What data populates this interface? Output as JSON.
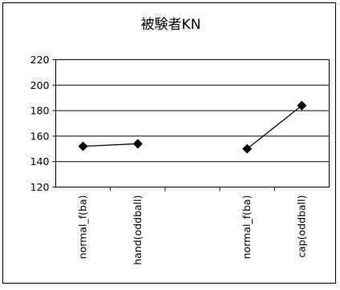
{
  "chart_data": {
    "type": "line",
    "title": "被験者KN",
    "categories": [
      "normal_f(ba)",
      "hand(oddball)",
      "",
      "normal_f(ba)",
      "cap(oddball)"
    ],
    "tick_labels": [
      "normal_f(ba)",
      "hand(oddball)",
      "normal_f(ba)",
      "cap(oddball)"
    ],
    "series": [
      {
        "segments": [
          {
            "points": [
              {
                "category": 0,
                "value": 152
              },
              {
                "category": 1,
                "value": 154
              }
            ]
          },
          {
            "points": [
              {
                "category": 3,
                "value": 150
              },
              {
                "category": 4,
                "value": 184
              }
            ]
          }
        ]
      }
    ],
    "yticks": [
      120,
      140,
      160,
      180,
      200,
      220
    ],
    "ylim": [
      120,
      220
    ],
    "xlabel": "",
    "ylabel": "",
    "grid": "horizontal",
    "legend": "none",
    "marker": "diamond",
    "colors": {
      "line": "#000000",
      "grid": "#000000",
      "background": "#ffffff"
    }
  }
}
